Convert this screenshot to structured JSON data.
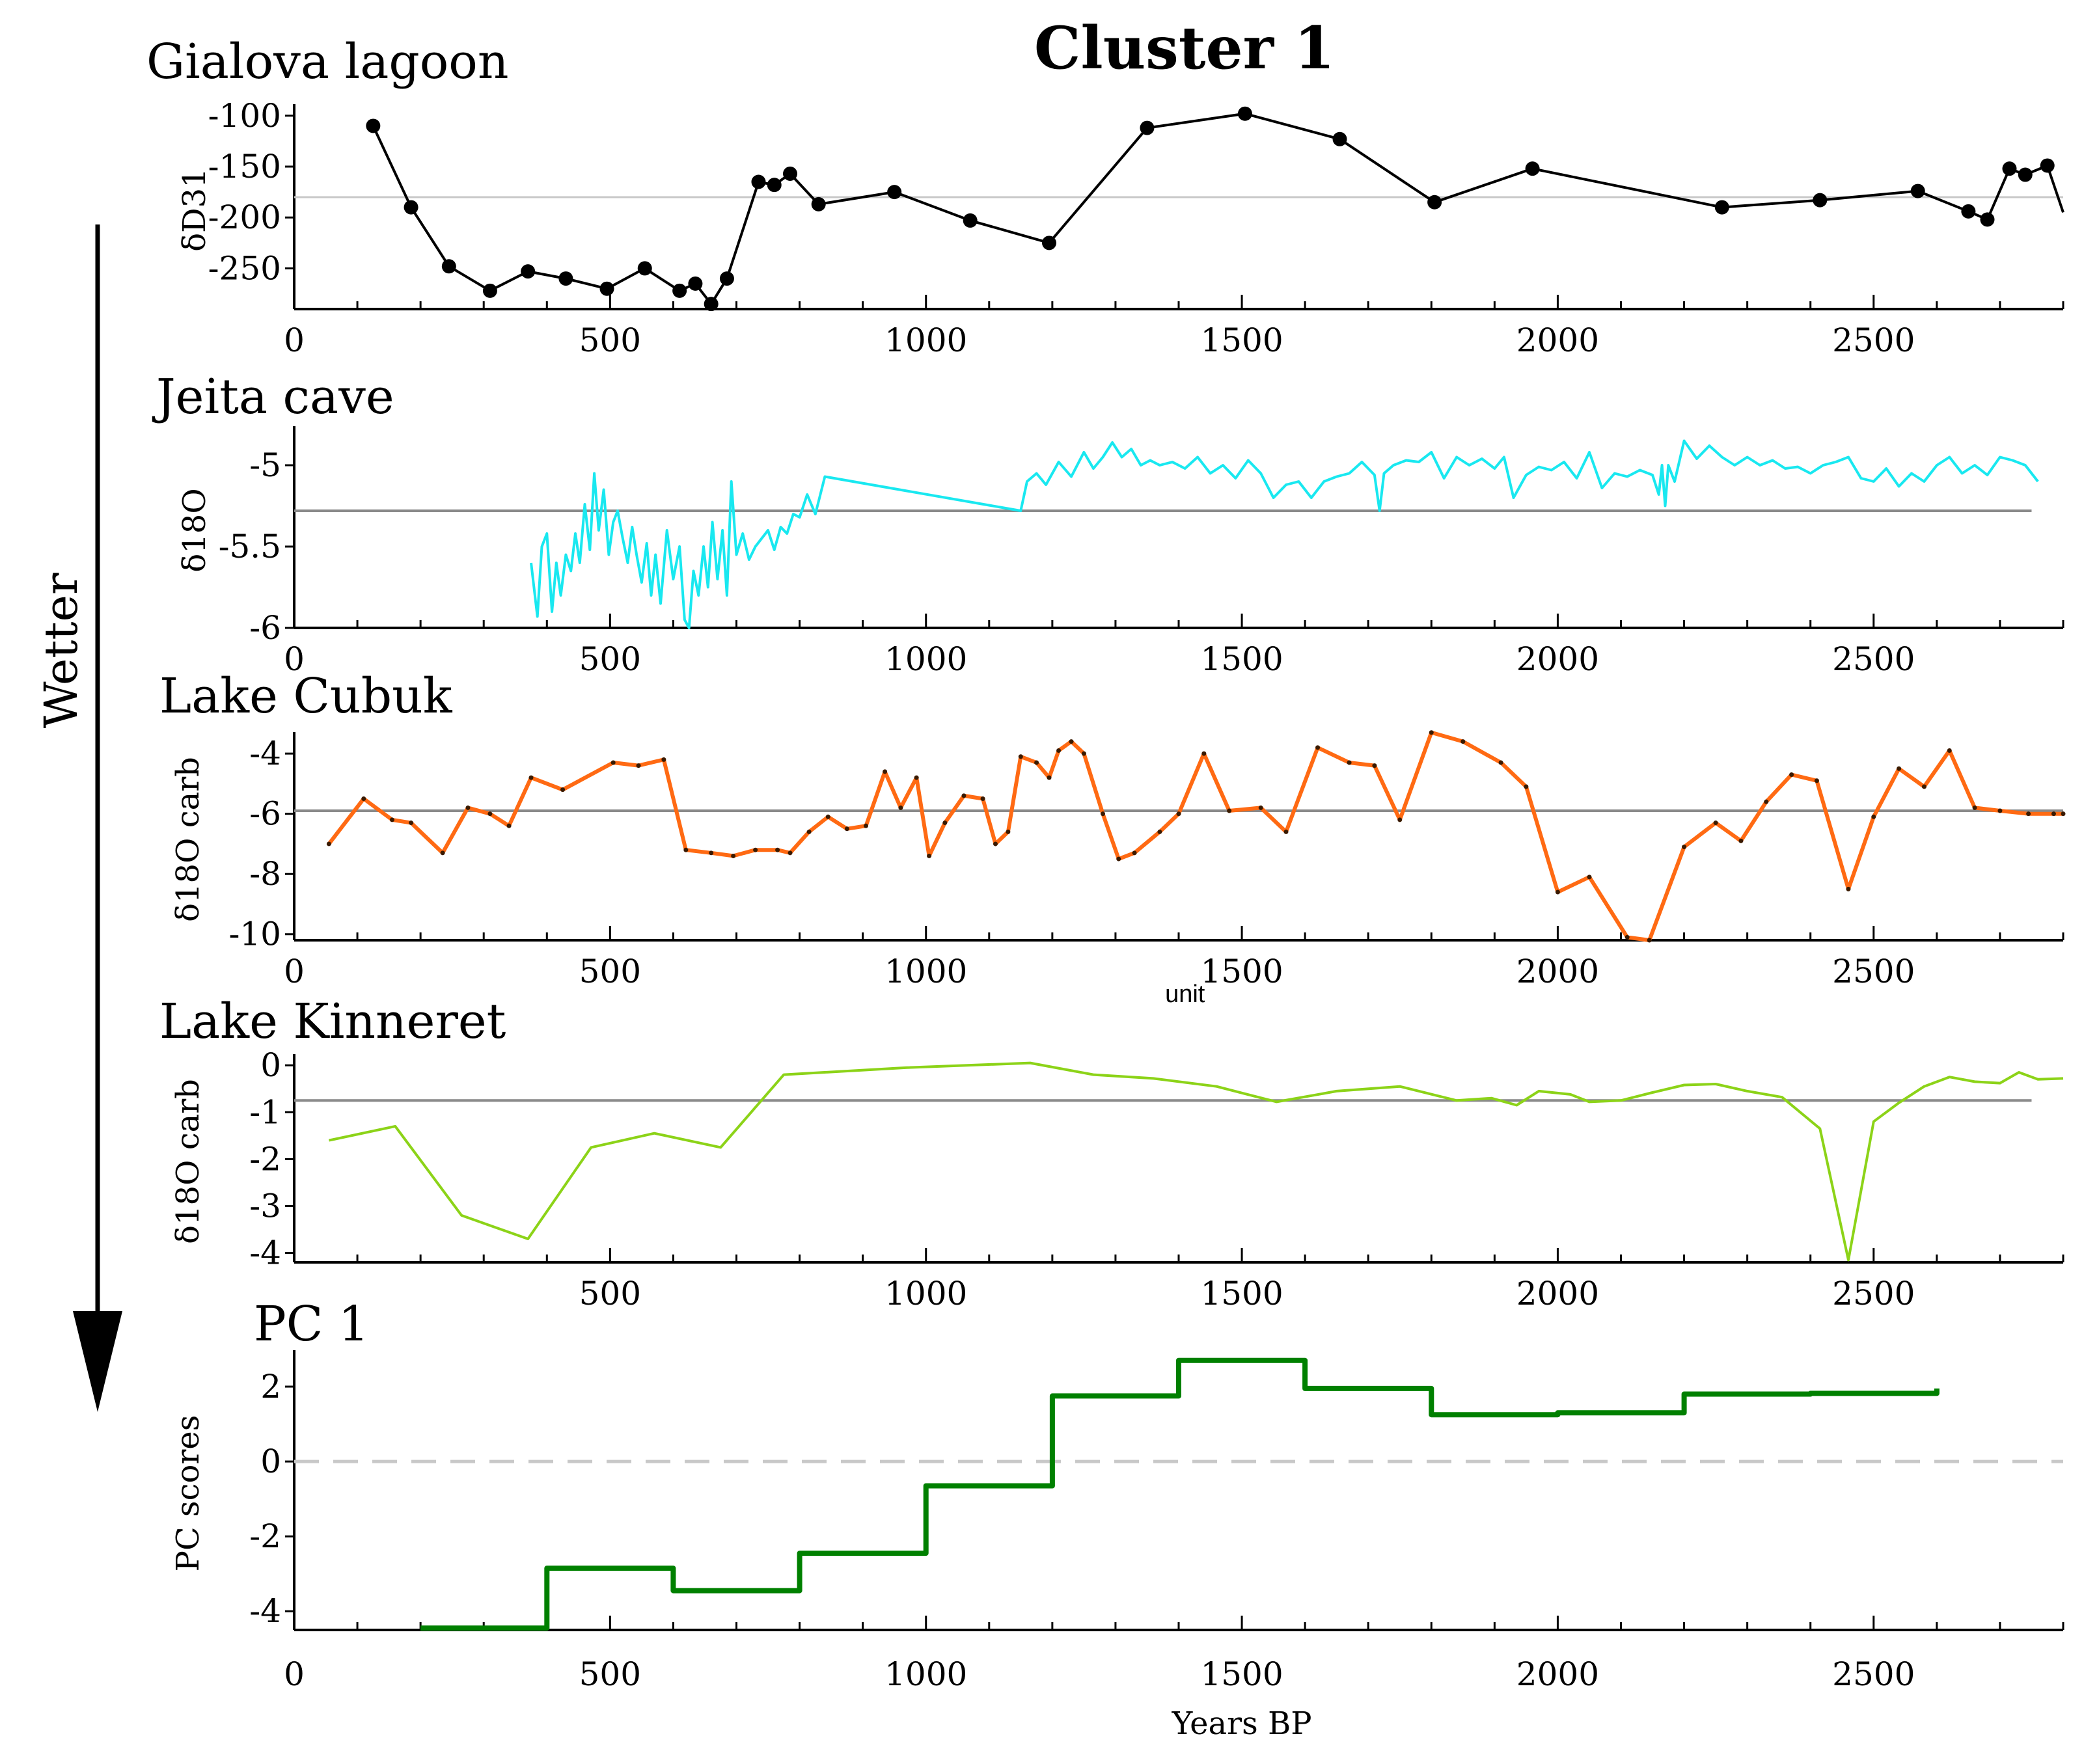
{
  "figure": {
    "title": "Cluster 1",
    "side_label": "Wetter"
  },
  "chart_data": [
    {
      "type": "line",
      "panel_title": "Gialova lagoon",
      "ylabel": "δD31",
      "xlabel": "",
      "xlim": [
        0,
        2800
      ],
      "ylim": [
        -290,
        -95
      ],
      "xticks": [
        0,
        500,
        1000,
        1500,
        2000,
        2500
      ],
      "yticks": [
        -100,
        -150,
        -200,
        -250
      ],
      "reference_line": -180,
      "color": "#000000",
      "markers": true,
      "x": [
        125,
        185,
        245,
        310,
        370,
        430,
        495,
        555,
        610,
        635,
        660,
        685,
        735,
        760,
        785,
        830,
        950,
        1070,
        1195,
        1350,
        1505,
        1655,
        1805,
        1960,
        2260,
        2415,
        2570,
        2650,
        2680,
        2715,
        2740,
        2775,
        2800
      ],
      "y": [
        -110,
        -190,
        -248,
        -272,
        -253,
        -260,
        -270,
        -250,
        -272,
        -265,
        -285,
        -260,
        -165,
        -168,
        -157,
        -187,
        -175,
        -203,
        -225,
        -112,
        -98,
        -123,
        -185,
        -152,
        -190,
        -183,
        -174,
        -194,
        -202,
        -152,
        -158,
        -149,
        -195
      ],
      "marker_x": [
        125,
        185,
        245,
        310,
        370,
        430,
        495,
        555,
        610,
        635,
        660,
        685,
        735,
        760,
        785,
        830,
        950,
        1070,
        1195,
        1350,
        1505,
        1655,
        1805,
        1960,
        2260,
        2415,
        2570,
        2650,
        2680,
        2715,
        2740,
        2775
      ],
      "marker_y": [
        -110,
        -190,
        -248,
        -272,
        -253,
        -260,
        -270,
        -250,
        -272,
        -265,
        -285,
        -260,
        -165,
        -168,
        -157,
        -187,
        -175,
        -203,
        -225,
        -112,
        -98,
        -123,
        -185,
        -152,
        -190,
        -183,
        -174,
        -194,
        -202,
        -152,
        -158,
        -149
      ]
    },
    {
      "type": "line",
      "panel_title": "Jeita cave",
      "ylabel": "δ18O",
      "xlabel": "",
      "xlim": [
        0,
        2800
      ],
      "ylim": [
        -6.0,
        -4.8
      ],
      "xticks": [
        0,
        500,
        1000,
        1500,
        2000,
        2500
      ],
      "yticks": [
        -5,
        -5.5,
        -6
      ],
      "reference_line": -5.28,
      "reference_extent": [
        0,
        2750
      ],
      "color": "#19E8F0",
      "x": [
        375,
        385,
        392,
        400,
        408,
        415,
        422,
        430,
        438,
        445,
        452,
        460,
        468,
        475,
        482,
        490,
        498,
        505,
        512,
        520,
        528,
        535,
        542,
        550,
        558,
        565,
        572,
        580,
        590,
        600,
        610,
        618,
        625,
        632,
        640,
        648,
        655,
        662,
        670,
        678,
        685,
        692,
        700,
        710,
        720,
        730,
        740,
        750,
        760,
        770,
        780,
        790,
        800,
        812,
        825,
        840,
        1150,
        1160,
        1175,
        1190,
        1210,
        1230,
        1250,
        1265,
        1280,
        1295,
        1310,
        1325,
        1340,
        1355,
        1370,
        1390,
        1410,
        1430,
        1450,
        1470,
        1490,
        1510,
        1530,
        1550,
        1570,
        1590,
        1610,
        1630,
        1650,
        1670,
        1690,
        1710,
        1718,
        1725,
        1740,
        1760,
        1780,
        1800,
        1820,
        1840,
        1860,
        1880,
        1900,
        1915,
        1930,
        1950,
        1970,
        1990,
        2010,
        2030,
        2050,
        2070,
        2090,
        2110,
        2130,
        2150,
        2160,
        2165,
        2170,
        2175,
        2185,
        2200,
        2220,
        2240,
        2260,
        2280,
        2300,
        2320,
        2340,
        2360,
        2380,
        2400,
        2420,
        2440,
        2460,
        2480,
        2500,
        2520,
        2540,
        2560,
        2580,
        2600,
        2620,
        2640,
        2660,
        2680,
        2700,
        2720,
        2740,
        2760
      ],
      "y": [
        -5.6,
        -5.93,
        -5.5,
        -5.42,
        -5.9,
        -5.6,
        -5.8,
        -5.55,
        -5.65,
        -5.42,
        -5.6,
        -5.24,
        -5.52,
        -5.05,
        -5.4,
        -5.15,
        -5.55,
        -5.35,
        -5.28,
        -5.45,
        -5.6,
        -5.38,
        -5.55,
        -5.72,
        -5.48,
        -5.8,
        -5.55,
        -5.85,
        -5.4,
        -5.7,
        -5.5,
        -5.95,
        -6.0,
        -5.65,
        -5.8,
        -5.5,
        -5.75,
        -5.35,
        -5.7,
        -5.4,
        -5.8,
        -5.1,
        -5.55,
        -5.42,
        -5.58,
        -5.5,
        -5.45,
        -5.4,
        -5.52,
        -5.38,
        -5.42,
        -5.3,
        -5.32,
        -5.18,
        -5.3,
        -5.07,
        -5.28,
        -5.1,
        -5.05,
        -5.12,
        -4.98,
        -5.07,
        -4.92,
        -5.02,
        -4.95,
        -4.86,
        -4.95,
        -4.9,
        -5.0,
        -4.97,
        -5.0,
        -4.98,
        -5.02,
        -4.95,
        -5.05,
        -5.0,
        -5.08,
        -4.97,
        -5.05,
        -5.2,
        -5.12,
        -5.1,
        -5.2,
        -5.1,
        -5.07,
        -5.05,
        -4.98,
        -5.06,
        -5.28,
        -5.05,
        -5.0,
        -4.97,
        -4.98,
        -4.92,
        -5.08,
        -4.95,
        -5.0,
        -4.96,
        -5.02,
        -4.95,
        -5.2,
        -5.06,
        -5.01,
        -5.03,
        -4.98,
        -5.08,
        -4.92,
        -5.14,
        -5.05,
        -5.07,
        -5.03,
        -5.06,
        -5.18,
        -5.0,
        -5.25,
        -5.0,
        -5.1,
        -4.85,
        -4.96,
        -4.88,
        -4.95,
        -5.0,
        -4.95,
        -5.0,
        -4.97,
        -5.02,
        -5.01,
        -5.05,
        -5.0,
        -4.98,
        -4.95,
        -5.08,
        -5.1,
        -5.02,
        -5.13,
        -5.05,
        -5.1,
        -5.0,
        -4.95,
        -5.05,
        -5.0,
        -5.06,
        -4.95,
        -4.97,
        -5.0,
        -5.1
      ]
    },
    {
      "type": "line",
      "panel_title": "Lake Cubuk",
      "ylabel": "δ18O carb",
      "xlabel": "unit",
      "xlim": [
        0,
        2800
      ],
      "ylim": [
        -10.2,
        -3.5
      ],
      "xticks": [
        0,
        500,
        1000,
        1500,
        2000,
        2500
      ],
      "yticks": [
        -4,
        -6,
        -8,
        -10
      ],
      "reference_line": -5.9,
      "color": "#FF6A13",
      "x": [
        55,
        110,
        155,
        185,
        235,
        275,
        310,
        340,
        375,
        425,
        505,
        545,
        585,
        620,
        660,
        695,
        730,
        765,
        785,
        815,
        845,
        875,
        905,
        935,
        960,
        985,
        1005,
        1030,
        1060,
        1090,
        1110,
        1130,
        1150,
        1175,
        1195,
        1210,
        1230,
        1250,
        1280,
        1305,
        1330,
        1370,
        1400,
        1440,
        1480,
        1530,
        1570,
        1620,
        1670,
        1710,
        1750,
        1800,
        1850,
        1910,
        1950,
        2000,
        2050,
        2110,
        2145,
        2200,
        2250,
        2290,
        2330,
        2370,
        2410,
        2460,
        2500,
        2540,
        2580,
        2620,
        2660,
        2700,
        2745,
        2785,
        2800
      ],
      "y": [
        -7.0,
        -5.5,
        -6.2,
        -6.3,
        -7.3,
        -5.8,
        -6.0,
        -6.4,
        -4.8,
        -5.2,
        -4.3,
        -4.4,
        -4.2,
        -7.2,
        -7.3,
        -7.4,
        -7.2,
        -7.2,
        -7.3,
        -6.6,
        -6.1,
        -6.5,
        -6.4,
        -4.6,
        -5.8,
        -4.8,
        -7.4,
        -6.3,
        -5.4,
        -5.5,
        -7.0,
        -6.6,
        -4.1,
        -4.3,
        -4.8,
        -3.9,
        -3.6,
        -4.0,
        -6.0,
        -7.5,
        -7.3,
        -6.6,
        -6.0,
        -4.0,
        -5.9,
        -5.8,
        -6.6,
        -3.8,
        -4.3,
        -4.4,
        -6.2,
        -3.3,
        -3.6,
        -4.3,
        -5.1,
        -8.6,
        -8.1,
        -10.1,
        -10.2,
        -7.1,
        -6.3,
        -6.9,
        -5.6,
        -4.7,
        -4.9,
        -8.5,
        -6.1,
        -4.5,
        -5.1,
        -3.9,
        -5.8,
        -5.9,
        -6.0,
        -6.0,
        -6.0
      ]
    },
    {
      "type": "line",
      "panel_title": "Lake Kinneret",
      "ylabel": "δ18O carb",
      "xlabel": "",
      "xlim": [
        0,
        2800
      ],
      "ylim": [
        -4.2,
        0.1
      ],
      "xticks": [
        500,
        1000,
        1500,
        2000,
        2500
      ],
      "yticks": [
        0,
        -1,
        -2,
        -3,
        -4
      ],
      "reference_line": -0.75,
      "reference_extent": [
        0,
        2750
      ],
      "color": "#8CD318",
      "x": [
        55,
        160,
        265,
        370,
        470,
        570,
        675,
        775,
        970,
        1165,
        1265,
        1360,
        1460,
        1555,
        1650,
        1750,
        1840,
        1895,
        1935,
        1970,
        2020,
        2050,
        2100,
        2150,
        2200,
        2250,
        2300,
        2355,
        2415,
        2460,
        2500,
        2540,
        2580,
        2620,
        2660,
        2700,
        2730,
        2760,
        2800
      ],
      "y": [
        -1.6,
        -1.3,
        -3.2,
        -3.7,
        -1.75,
        -1.45,
        -1.75,
        -0.2,
        -0.05,
        0.05,
        -0.2,
        -0.28,
        -0.45,
        -0.78,
        -0.55,
        -0.45,
        -0.75,
        -0.7,
        -0.85,
        -0.55,
        -0.62,
        -0.78,
        -0.75,
        -0.58,
        -0.42,
        -0.4,
        -0.55,
        -0.68,
        -1.35,
        -4.15,
        -1.2,
        -0.8,
        -0.45,
        -0.25,
        -0.35,
        -0.38,
        -0.15,
        -0.3,
        -0.28
      ]
    },
    {
      "type": "line",
      "panel_title": "PC 1",
      "ylabel": "PC scores",
      "xlabel": "Years BP",
      "xlim": [
        0,
        2800
      ],
      "ylim": [
        -4.5,
        2.8
      ],
      "xticks": [
        0,
        500,
        1000,
        1500,
        2000,
        2500
      ],
      "yticks": [
        2,
        0,
        -2,
        -4
      ],
      "reference_line": 0,
      "reference_style": "dashed",
      "color": "#008000",
      "step": true,
      "x": [
        200,
        400,
        400,
        600,
        600,
        800,
        800,
        1000,
        1000,
        1200,
        1200,
        1400,
        1400,
        1600,
        1600,
        1800,
        1800,
        2000,
        2000,
        2200,
        2200,
        2400,
        2400,
        2600,
        2600
      ],
      "y": [
        -4.45,
        -4.45,
        -2.85,
        -2.85,
        -3.45,
        -3.45,
        -2.45,
        -2.45,
        -0.65,
        -0.65,
        1.75,
        1.75,
        2.7,
        2.7,
        1.95,
        1.95,
        1.25,
        1.25,
        1.3,
        1.3,
        1.8,
        1.8,
        1.82,
        1.82,
        1.95
      ]
    }
  ]
}
